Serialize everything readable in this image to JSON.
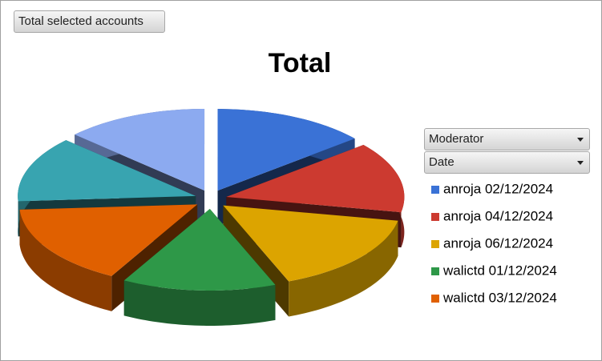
{
  "report_filter_button": "Total selected accounts",
  "field_buttons": [
    "Moderator",
    "Date"
  ],
  "chart_data": {
    "type": "pie",
    "title": "Total",
    "style": "3d-exploded",
    "categories": [
      "anroja 02/12/2024",
      "anroja 04/12/2024",
      "anroja 06/12/2024",
      "walictd 01/12/2024",
      "walictd 03/12/2024",
      null,
      null
    ],
    "values": [
      14,
      14,
      16,
      14,
      16,
      13,
      13
    ],
    "colors": [
      "#3a72d6",
      "#cc3a30",
      "#dca400",
      "#2e9848",
      "#e06000",
      "#38a4b0",
      "#8caaf0"
    ],
    "legend": "right"
  }
}
